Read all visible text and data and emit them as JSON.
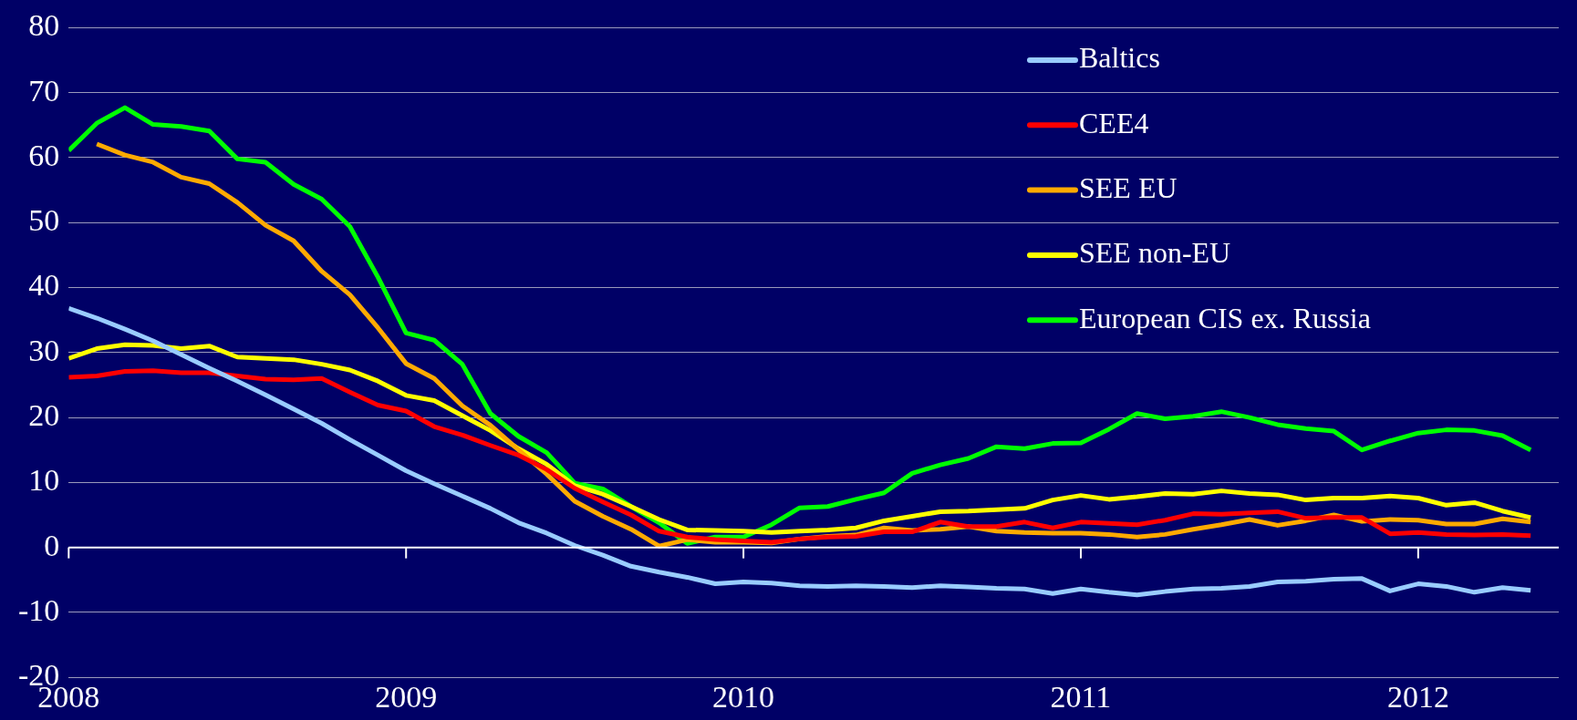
{
  "chart_data": {
    "type": "line",
    "x": [
      "2008-01",
      "2008-02",
      "2008-03",
      "2008-04",
      "2008-05",
      "2008-06",
      "2008-07",
      "2008-08",
      "2008-09",
      "2008-10",
      "2008-11",
      "2008-12",
      "2009-01",
      "2009-02",
      "2009-03",
      "2009-04",
      "2009-05",
      "2009-06",
      "2009-07",
      "2009-08",
      "2009-09",
      "2009-10",
      "2009-11",
      "2009-12",
      "2010-01",
      "2010-02",
      "2010-03",
      "2010-04",
      "2010-05",
      "2010-06",
      "2010-07",
      "2010-08",
      "2010-09",
      "2010-10",
      "2010-11",
      "2010-12",
      "2011-01",
      "2011-02",
      "2011-03",
      "2011-04",
      "2011-05",
      "2011-06",
      "2011-07",
      "2011-08",
      "2011-09",
      "2011-10",
      "2011-11",
      "2011-12",
      "2012-01",
      "2012-02",
      "2012-03",
      "2012-04",
      "2012-05"
    ],
    "series": [
      {
        "name": "Baltics",
        "color": "#99ccff",
        "values": [
          36.8,
          35.3,
          33.6,
          31.8,
          29.7,
          27.6,
          25.6,
          23.5,
          21.3,
          19.1,
          16.6,
          14.2,
          11.8,
          9.8,
          7.9,
          6.0,
          3.8,
          2.2,
          0.3,
          -1.2,
          -2.9,
          -3.8,
          -4.6,
          -5.6,
          -5.3,
          -5.5,
          -5.9,
          -6.0,
          -5.9,
          -6.0,
          -6.2,
          -5.9,
          -6.1,
          -6.3,
          -6.4,
          -7.1,
          -6.4,
          -6.9,
          -7.3,
          -6.8,
          -6.4,
          -6.3,
          -6.0,
          -5.3,
          -5.2,
          -4.9,
          -4.8,
          -6.7,
          -5.6,
          -6.0,
          -6.9,
          -6.2,
          -6.6
        ]
      },
      {
        "name": "CEE4",
        "color": "#ff0000",
        "values": [
          26.2,
          26.4,
          27.1,
          27.2,
          26.9,
          26.9,
          26.4,
          25.9,
          25.8,
          26.0,
          23.9,
          21.9,
          21.0,
          18.6,
          17.3,
          15.7,
          14.2,
          12.0,
          9.1,
          7.0,
          5.0,
          2.5,
          1.6,
          1.2,
          1.0,
          0.8,
          1.3,
          1.6,
          1.7,
          2.4,
          2.4,
          3.9,
          3.2,
          3.2,
          3.9,
          3.0,
          3.9,
          3.7,
          3.5,
          4.2,
          5.2,
          5.1,
          5.3,
          5.5,
          4.5,
          4.6,
          4.6,
          2.1,
          2.3,
          2.0,
          1.9,
          2.0,
          1.8
        ]
      },
      {
        "name": "SEE EU",
        "color": "#ffaa00",
        "values": [
          null,
          62.1,
          60.4,
          59.3,
          57.0,
          56.0,
          53.1,
          49.6,
          47.2,
          42.5,
          38.9,
          33.8,
          28.3,
          26.0,
          21.8,
          18.8,
          15.0,
          11.3,
          7.1,
          4.8,
          2.8,
          0.2,
          1.2,
          0.8,
          0.8,
          0.7,
          1.3,
          1.7,
          1.9,
          3.0,
          2.6,
          2.8,
          3.2,
          2.5,
          2.3,
          2.2,
          2.2,
          2.0,
          1.6,
          2.0,
          2.8,
          3.5,
          4.3,
          3.4,
          4.1,
          5.0,
          4.0,
          4.3,
          4.2,
          3.6,
          3.6,
          4.4,
          3.9
        ]
      },
      {
        "name": "SEE non-EU",
        "color": "#ffff00",
        "values": [
          29.1,
          30.6,
          31.2,
          31.1,
          30.6,
          31.0,
          29.3,
          29.1,
          28.9,
          28.2,
          27.3,
          25.6,
          23.4,
          22.6,
          20.3,
          18.0,
          15.2,
          12.8,
          9.5,
          8.2,
          6.3,
          4.3,
          2.7,
          2.6,
          2.5,
          2.3,
          2.5,
          2.7,
          3.0,
          4.1,
          4.8,
          5.5,
          5.6,
          5.8,
          6.0,
          7.3,
          8.0,
          7.4,
          7.8,
          8.3,
          8.2,
          8.7,
          8.3,
          8.1,
          7.3,
          7.6,
          7.6,
          7.9,
          7.6,
          6.5,
          6.9,
          5.6,
          4.6
        ]
      },
      {
        "name": "European CIS ex. Russia",
        "color": "#00ff00",
        "values": [
          61.1,
          65.3,
          67.7,
          65.1,
          64.8,
          64.1,
          59.8,
          59.3,
          55.9,
          53.6,
          49.4,
          41.6,
          33.0,
          31.9,
          28.2,
          20.6,
          17.1,
          14.6,
          9.9,
          9.0,
          6.3,
          3.8,
          0.6,
          1.6,
          1.6,
          3.5,
          6.1,
          6.3,
          7.4,
          8.4,
          11.4,
          12.7,
          13.7,
          15.5,
          15.2,
          16.0,
          16.1,
          18.2,
          20.6,
          19.8,
          20.2,
          20.9,
          20.0,
          18.9,
          18.3,
          17.9,
          15.0,
          16.4,
          17.6,
          18.1,
          18.0,
          17.2,
          15.0
        ]
      }
    ],
    "xlim": [
      "2008",
      "2012-06"
    ],
    "xticks": [
      "2008",
      "2009",
      "2010",
      "2011",
      "2012"
    ],
    "ylim": [
      -20,
      80
    ],
    "yticks": [
      -20,
      -10,
      0,
      10,
      20,
      30,
      40,
      50,
      60,
      70,
      80
    ],
    "grid": "y",
    "legend": "top right",
    "marker": "none",
    "line_style": "solid"
  }
}
